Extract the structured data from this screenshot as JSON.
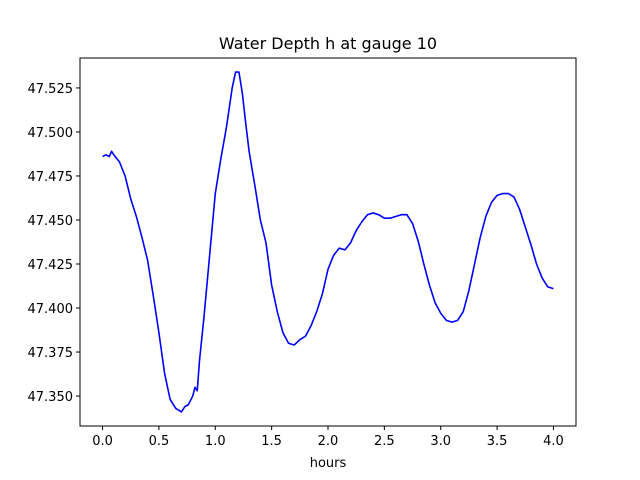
{
  "chart_data": {
    "type": "line",
    "title": "Water Depth h at gauge 10",
    "xlabel": "hours",
    "ylabel": "",
    "xlim": [
      -0.2,
      4.2
    ],
    "ylim": [
      47.333,
      47.542
    ],
    "xticks": [
      0.0,
      0.5,
      1.0,
      1.5,
      2.0,
      2.5,
      3.0,
      3.5,
      4.0
    ],
    "xtick_labels": [
      "0.0",
      "0.5",
      "1.0",
      "1.5",
      "2.0",
      "2.5",
      "3.0",
      "3.5",
      "4.0"
    ],
    "yticks": [
      47.35,
      47.375,
      47.4,
      47.425,
      47.45,
      47.475,
      47.5,
      47.525
    ],
    "ytick_labels": [
      "47.350",
      "47.375",
      "47.400",
      "47.425",
      "47.450",
      "47.475",
      "47.500",
      "47.525"
    ],
    "grid": false,
    "series": [
      {
        "color": "#0000ff",
        "x": [
          0.0,
          0.03,
          0.06,
          0.08,
          0.1,
          0.15,
          0.2,
          0.25,
          0.3,
          0.35,
          0.4,
          0.45,
          0.5,
          0.55,
          0.6,
          0.65,
          0.7,
          0.73,
          0.76,
          0.8,
          0.82,
          0.84,
          0.86,
          0.9,
          0.95,
          1.0,
          1.05,
          1.1,
          1.15,
          1.18,
          1.21,
          1.24,
          1.27,
          1.3,
          1.35,
          1.4,
          1.45,
          1.5,
          1.55,
          1.6,
          1.65,
          1.7,
          1.75,
          1.8,
          1.85,
          1.9,
          1.95,
          2.0,
          2.05,
          2.1,
          2.15,
          2.2,
          2.25,
          2.3,
          2.35,
          2.4,
          2.45,
          2.5,
          2.55,
          2.6,
          2.65,
          2.7,
          2.75,
          2.8,
          2.85,
          2.9,
          2.95,
          3.0,
          3.05,
          3.1,
          3.15,
          3.2,
          3.25,
          3.3,
          3.35,
          3.4,
          3.45,
          3.5,
          3.55,
          3.6,
          3.65,
          3.7,
          3.75,
          3.8,
          3.85,
          3.9,
          3.95,
          4.0
        ],
        "y": [
          47.486,
          47.487,
          47.486,
          47.489,
          47.487,
          47.483,
          47.475,
          47.462,
          47.452,
          47.44,
          47.427,
          47.407,
          47.386,
          47.363,
          47.348,
          47.343,
          47.341,
          47.344,
          47.345,
          47.35,
          47.355,
          47.353,
          47.37,
          47.395,
          47.43,
          47.465,
          47.485,
          47.503,
          47.525,
          47.534,
          47.534,
          47.522,
          47.505,
          47.489,
          47.47,
          47.45,
          47.437,
          47.413,
          47.398,
          47.386,
          47.38,
          47.379,
          47.382,
          47.384,
          47.39,
          47.398,
          47.408,
          47.422,
          47.43,
          47.434,
          47.433,
          47.437,
          47.444,
          47.449,
          47.453,
          47.454,
          47.453,
          47.451,
          47.451,
          47.452,
          47.453,
          47.453,
          47.448,
          47.438,
          47.425,
          47.413,
          47.403,
          47.397,
          47.393,
          47.392,
          47.393,
          47.398,
          47.41,
          47.425,
          47.44,
          47.452,
          47.46,
          47.464,
          47.465,
          47.465,
          47.463,
          47.456,
          47.446,
          47.436,
          47.425,
          47.417,
          47.412,
          47.411
        ]
      }
    ]
  }
}
